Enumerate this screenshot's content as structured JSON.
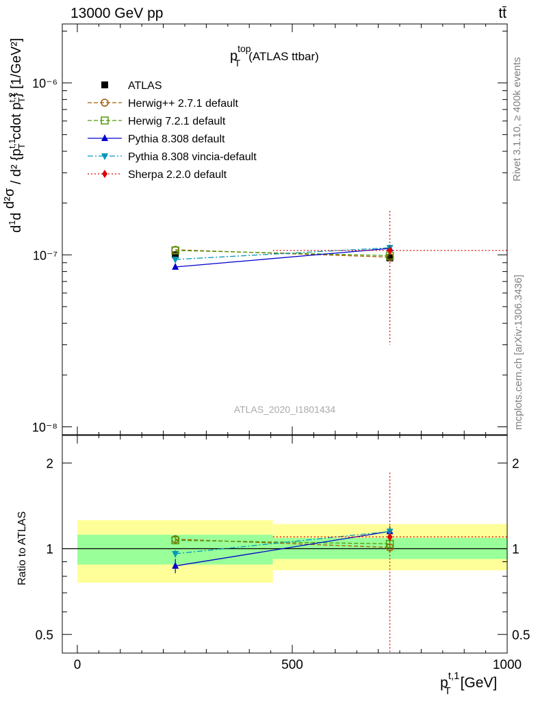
{
  "header": {
    "energy_label": "13000 GeV pp",
    "process_label": "tt̄",
    "rivet_label": "Rivet 3.1.10, ≥ 400k events",
    "source_label": "mcplots.cern.ch [arXiv:1306.3436]",
    "analysis_label": "ATLAS_2020_I1801434"
  },
  "main_plot": {
    "title_main": "p",
    "title_sup": "top",
    "title_sub": "T",
    "title_suffix": "(ATLAS ttbar)",
    "ylabel": "d²σ / d²{p_T^t,1 cdot p_T^t,2} [1/GeV²]",
    "ytick_labels": [
      "10⁻⁸",
      "10⁻⁷",
      "10⁻⁶"
    ],
    "ylim": [
      9e-09,
      2.2e-06
    ],
    "log_y": true
  },
  "ratio_plot": {
    "ylabel": "Ratio to ATLAS",
    "ytick_labels": [
      "0.5",
      "1",
      "2"
    ],
    "ylim": [
      0.43,
      2.5
    ]
  },
  "x_axis": {
    "label_main": "p",
    "label_sup": "t,1",
    "label_sub": "T",
    "label_unit": "[GeV]",
    "tick_labels": [
      "0",
      "500",
      "1000"
    ],
    "xlim": [
      -35,
      1000
    ]
  },
  "legend": {
    "entries": [
      {
        "label": "ATLAS",
        "marker": "square-filled",
        "color": "#000000"
      },
      {
        "label": "Herwig++ 2.7.1 default",
        "marker": "circle-open",
        "color": "#a05a00"
      },
      {
        "label": "Herwig 7.2.1 default",
        "marker": "square-open",
        "color": "#4e9a06"
      },
      {
        "label": "Pythia 8.308 default",
        "marker": "triangle-up",
        "color": "#0000cc"
      },
      {
        "label": "Pythia 8.308 vincia-default",
        "marker": "triangle-down",
        "color": "#0099bb"
      },
      {
        "label": "Sherpa 2.2.0 default",
        "marker": "diamond",
        "color": "#dd0000"
      }
    ]
  },
  "chart_data": {
    "type": "line",
    "x_bins": [
      [
        0,
        455
      ],
      [
        455,
        1000
      ]
    ],
    "x": [
      228,
      727
    ],
    "data": {
      "name": "ATLAS",
      "values": [
        1e-07,
        9.6e-08
      ],
      "band_inner": [
        [
          0.88,
          1.12
        ],
        [
          0.92,
          1.09
        ]
      ],
      "band_outer": [
        [
          0.76,
          1.26
        ],
        [
          0.84,
          1.22
        ]
      ]
    },
    "series": [
      {
        "name": "Herwig++ 2.7.1 default",
        "color": "#a05a00",
        "dash": "dashed",
        "marker": "circle-open",
        "values": [
          1.07e-07,
          9.7e-08
        ],
        "ratio": [
          1.08,
          1.01
        ],
        "ratio_err": [
          0.03,
          0.03
        ]
      },
      {
        "name": "Herwig 7.2.1 default",
        "color": "#4e9a06",
        "dash": "dashed",
        "marker": "square-open",
        "values": [
          1.06e-07,
          9.9e-08
        ],
        "ratio": [
          1.07,
          1.04
        ],
        "ratio_err": [
          0.03,
          0.03
        ]
      },
      {
        "name": "Pythia 8.308 default",
        "color": "#0000cc",
        "dash": "solid",
        "marker": "triangle-up",
        "values": [
          8.5e-08,
          1.09e-07
        ],
        "ratio": [
          0.87,
          1.15
        ],
        "ratio_err": [
          0.05,
          0.05
        ]
      },
      {
        "name": "Pythia 8.308 vincia-default",
        "color": "#0099bb",
        "dash": "dashdot",
        "marker": "triangle-down",
        "values": [
          9.4e-08,
          1.1e-07
        ],
        "ratio": [
          0.96,
          1.15
        ],
        "ratio_err": [
          0.03,
          0.04
        ]
      },
      {
        "name": "Sherpa 2.2.0 default",
        "color": "#dd0000",
        "dash": "dotted",
        "marker": "diamond",
        "values": [
          null,
          1.06e-07
        ],
        "ratio": [
          null,
          1.1
        ],
        "ratio_err": [
          null,
          0.75
        ],
        "ylow_main": 3e-08,
        "yhigh_main": 1.8e-07,
        "xrange": [
          455,
          1000
        ]
      }
    ]
  }
}
